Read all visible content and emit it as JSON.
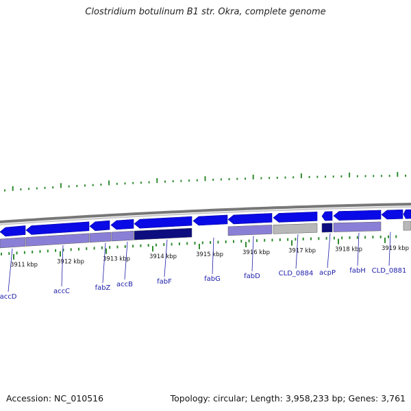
{
  "title": "Clostridium botulinum B1 str. Okra, complete genome",
  "accession_label": "Accession: NC_010516",
  "summary": "Topology: circular; Length: 3,958,233 bp; Genes: 3,761",
  "colors": {
    "forward_gene": "#0a0ae6",
    "cds_band": "#8a7fd6",
    "selected_band": "#0d0d80",
    "other_feature": "#b8b8b8",
    "tick": "#2e8b2e",
    "backbone": "#888888",
    "label": "#1a1aa8"
  },
  "kbp_labels": [
    "3911 kbp",
    "3912 kbp",
    "3913 kbp",
    "3914 kbp",
    "3915 kbp",
    "3916 kbp",
    "3917 kbp",
    "3918 kbp",
    "3919 kbp"
  ],
  "gene_labels": [
    "accD",
    "accC",
    "fabZ",
    "accB",
    "fabF",
    "fabG",
    "fabD",
    "CLD_0884",
    "acpP",
    "fabH",
    "CLD_0881"
  ]
}
